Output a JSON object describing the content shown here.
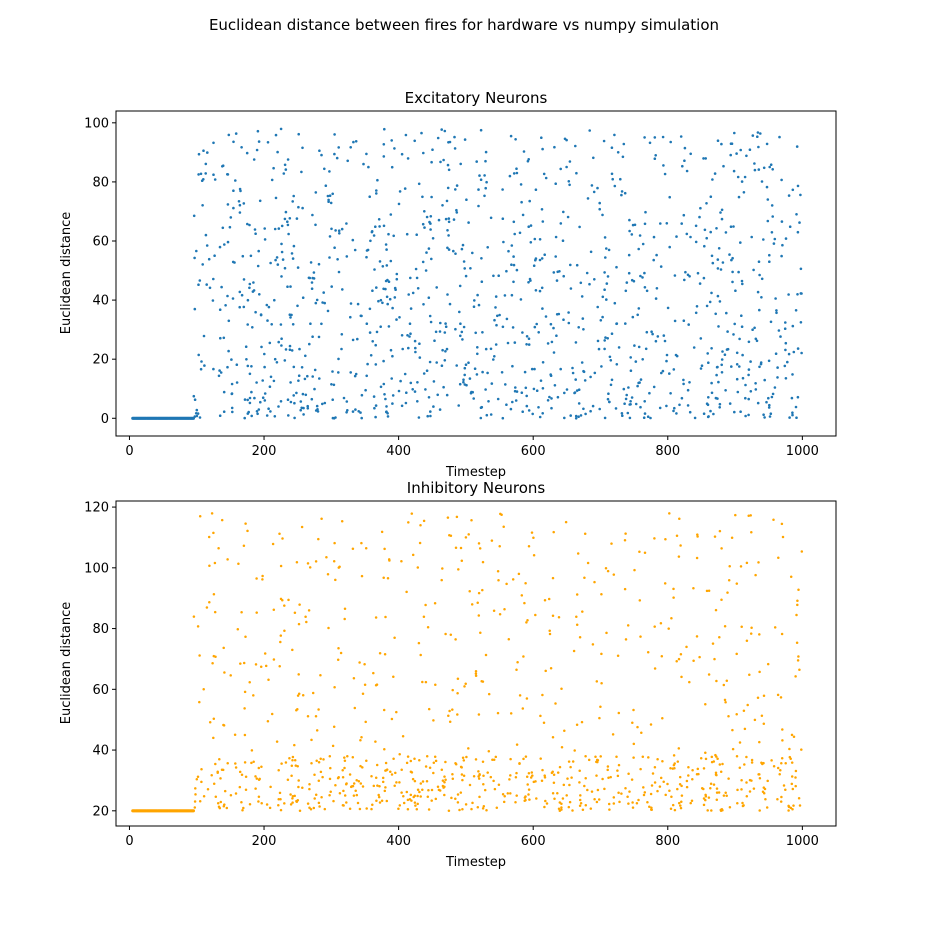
{
  "figure": {
    "suptitle": "Euclidean distance between fires for hardware vs numpy simulation"
  },
  "chart_data": [
    {
      "type": "scatter",
      "title": "Excitatory Neurons",
      "xlabel": "Timestep",
      "ylabel": "Euclidean distance",
      "xlim": [
        -20,
        1050
      ],
      "ylim": [
        -6,
        104
      ],
      "xticks": [
        0,
        200,
        400,
        600,
        800,
        1000
      ],
      "yticks": [
        0,
        20,
        40,
        60,
        80,
        100
      ],
      "grid": false,
      "color": "#1f77b4",
      "generator": {
        "baseline_until": 95,
        "baseline_value": 0,
        "x_max": 1000,
        "n_points": 1250,
        "seed": 11,
        "distribution": "uniform-biased-low",
        "min": 0,
        "max": 98
      }
    },
    {
      "type": "scatter",
      "title": "Inhibitory Neurons",
      "xlabel": "Timestep",
      "ylabel": "Euclidean distance",
      "xlim": [
        -20,
        1050
      ],
      "ylim": [
        15,
        122
      ],
      "xticks": [
        0,
        200,
        400,
        600,
        800,
        1000
      ],
      "yticks": [
        20,
        40,
        60,
        80,
        100,
        120
      ],
      "grid": false,
      "color": "#ffa500",
      "generator": {
        "baseline_until": 95,
        "baseline_value": 20,
        "x_max": 1000,
        "n_points": 1000,
        "seed": 29,
        "distribution": "mixed-low-cluster",
        "min": 20,
        "max": 118
      }
    }
  ]
}
